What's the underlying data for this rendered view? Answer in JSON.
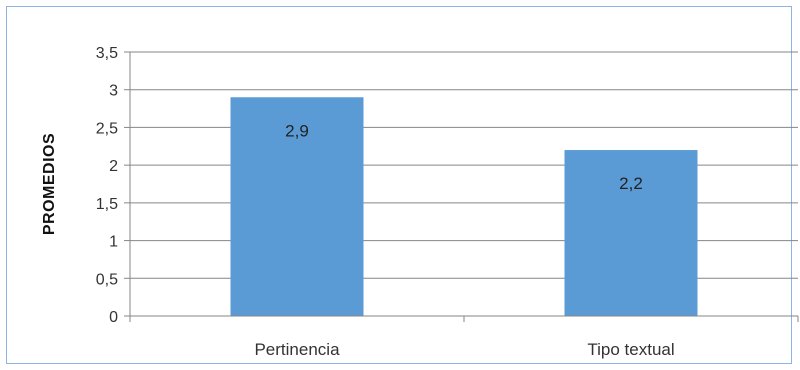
{
  "chart_data": {
    "type": "bar",
    "categories": [
      "Pertinencia",
      "Tipo textual"
    ],
    "values": [
      2.9,
      2.2
    ],
    "data_labels": [
      "2,9",
      "2,2"
    ],
    "ylabel": "PROMEDIOS",
    "xlabel": "",
    "ylim": [
      0,
      3.5
    ],
    "y_ticks": [
      {
        "value": 0,
        "label": "0"
      },
      {
        "value": 0.5,
        "label": "0,5"
      },
      {
        "value": 1,
        "label": "1"
      },
      {
        "value": 1.5,
        "label": "1,5"
      },
      {
        "value": 2,
        "label": "2"
      },
      {
        "value": 2.5,
        "label": "2,5"
      },
      {
        "value": 3,
        "label": "3"
      },
      {
        "value": 3.5,
        "label": "3,5"
      }
    ],
    "grid": true,
    "legend": "none",
    "colors": {
      "bar": "#5b9bd5",
      "gridline": "#868686",
      "axis": "#868686",
      "border": "#8eb4e3"
    }
  }
}
